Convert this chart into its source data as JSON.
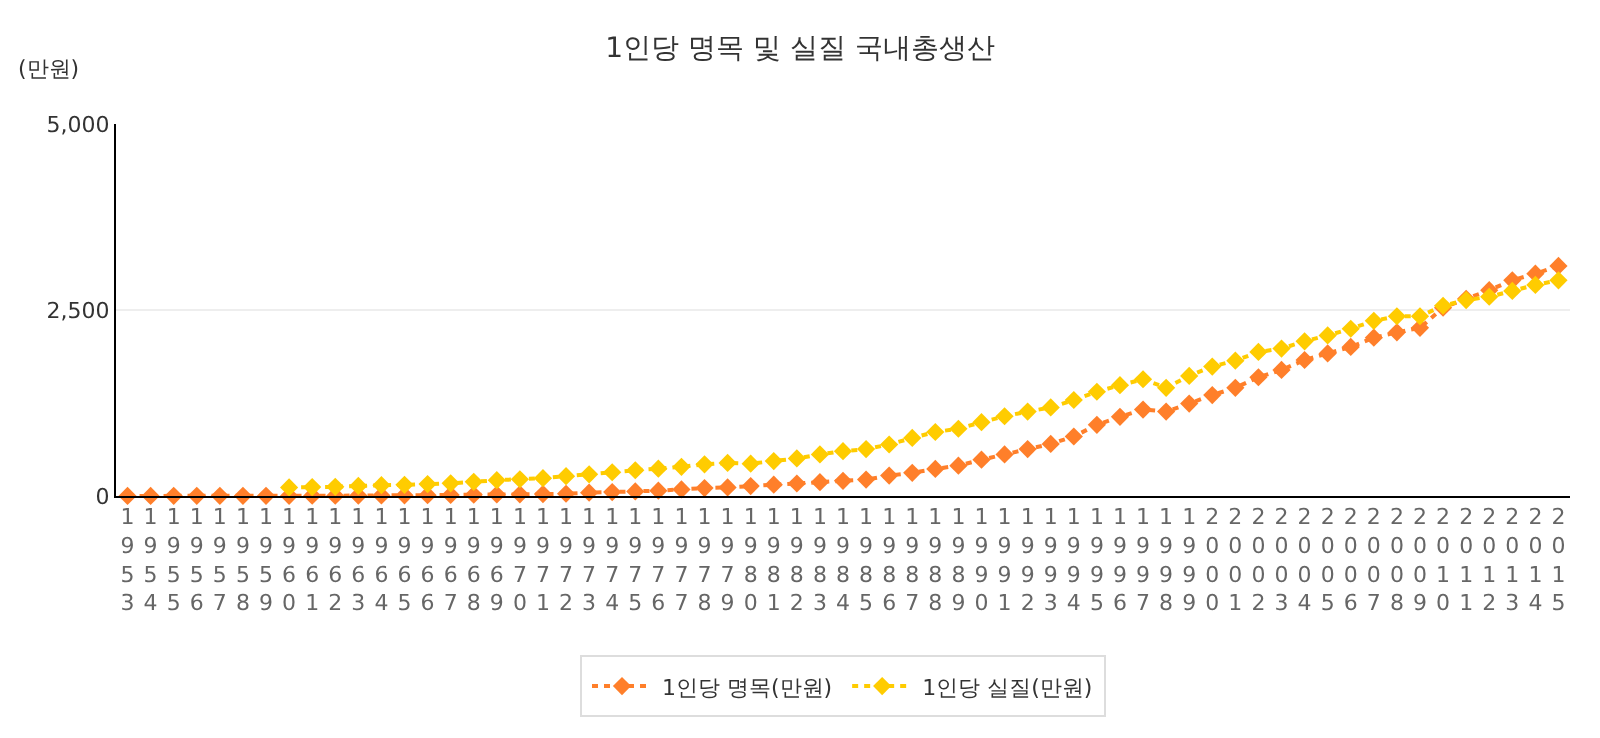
{
  "chart_data": {
    "type": "line",
    "title": "1인당 명목 및 실질 국내총생산",
    "ylabel": "(만원)",
    "categories": [
      "1953",
      "1954",
      "1955",
      "1956",
      "1957",
      "1958",
      "1959",
      "1960",
      "1961",
      "1962",
      "1963",
      "1964",
      "1965",
      "1966",
      "1967",
      "1968",
      "1969",
      "1970",
      "1971",
      "1972",
      "1973",
      "1974",
      "1975",
      "1976",
      "1977",
      "1978",
      "1979",
      "1980",
      "1981",
      "1982",
      "1983",
      "1984",
      "1985",
      "1986",
      "1987",
      "1988",
      "1989",
      "1990",
      "1991",
      "1992",
      "1993",
      "1994",
      "1995",
      "1996",
      "1997",
      "1998",
      "1999",
      "2000",
      "2001",
      "2002",
      "2003",
      "2004",
      "2005",
      "2006",
      "2007",
      "2008",
      "2009",
      "2010",
      "2011",
      "2012",
      "2013",
      "2014",
      "2015"
    ],
    "series": [
      {
        "name": "1인당 명목(만원)",
        "color": "#ff7f2a",
        "values": [
          1,
          1,
          2,
          2,
          3,
          3,
          3,
          3,
          4,
          4,
          6,
          8,
          9,
          11,
          14,
          17,
          20,
          22,
          26,
          30,
          45,
          53,
          62,
          72,
          89,
          106,
          115,
          133,
          152,
          168,
          186,
          204,
          221,
          275,
          311,
          364,
          408,
          488,
          559,
          630,
          700,
          800,
          957,
          1064,
          1162,
          1135,
          1242,
          1357,
          1454,
          1596,
          1694,
          1828,
          1916,
          2004,
          2128,
          2200,
          2260,
          2531,
          2651,
          2766,
          2899,
          2988,
          3093
        ]
      },
      {
        "name": "1인당 실질(만원)",
        "color": "#ffcc00",
        "values": [
          null,
          null,
          null,
          null,
          null,
          null,
          null,
          115,
          120,
          123,
          135,
          145,
          150,
          160,
          170,
          190,
          213,
          225,
          240,
          266,
          292,
          319,
          346,
          367,
          392,
          426,
          444,
          434,
          470,
          505,
          559,
          603,
          630,
          692,
          780,
          860,
          904,
          992,
          1072,
          1135,
          1190,
          1290,
          1401,
          1489,
          1569,
          1454,
          1614,
          1740,
          1819,
          1936,
          1981,
          2079,
          2159,
          2248,
          2354,
          2416,
          2416,
          2557,
          2633,
          2678,
          2757,
          2837,
          2899
        ]
      }
    ],
    "ylim": [
      0,
      5000
    ],
    "yticks": [
      {
        "value": 0,
        "label": "0"
      },
      {
        "value": 2500,
        "label": "2,500"
      },
      {
        "value": 5000,
        "label": "5,000"
      }
    ],
    "grid": "y",
    "legend": "bottom",
    "marker": "diamond",
    "line_style": "dotted"
  }
}
